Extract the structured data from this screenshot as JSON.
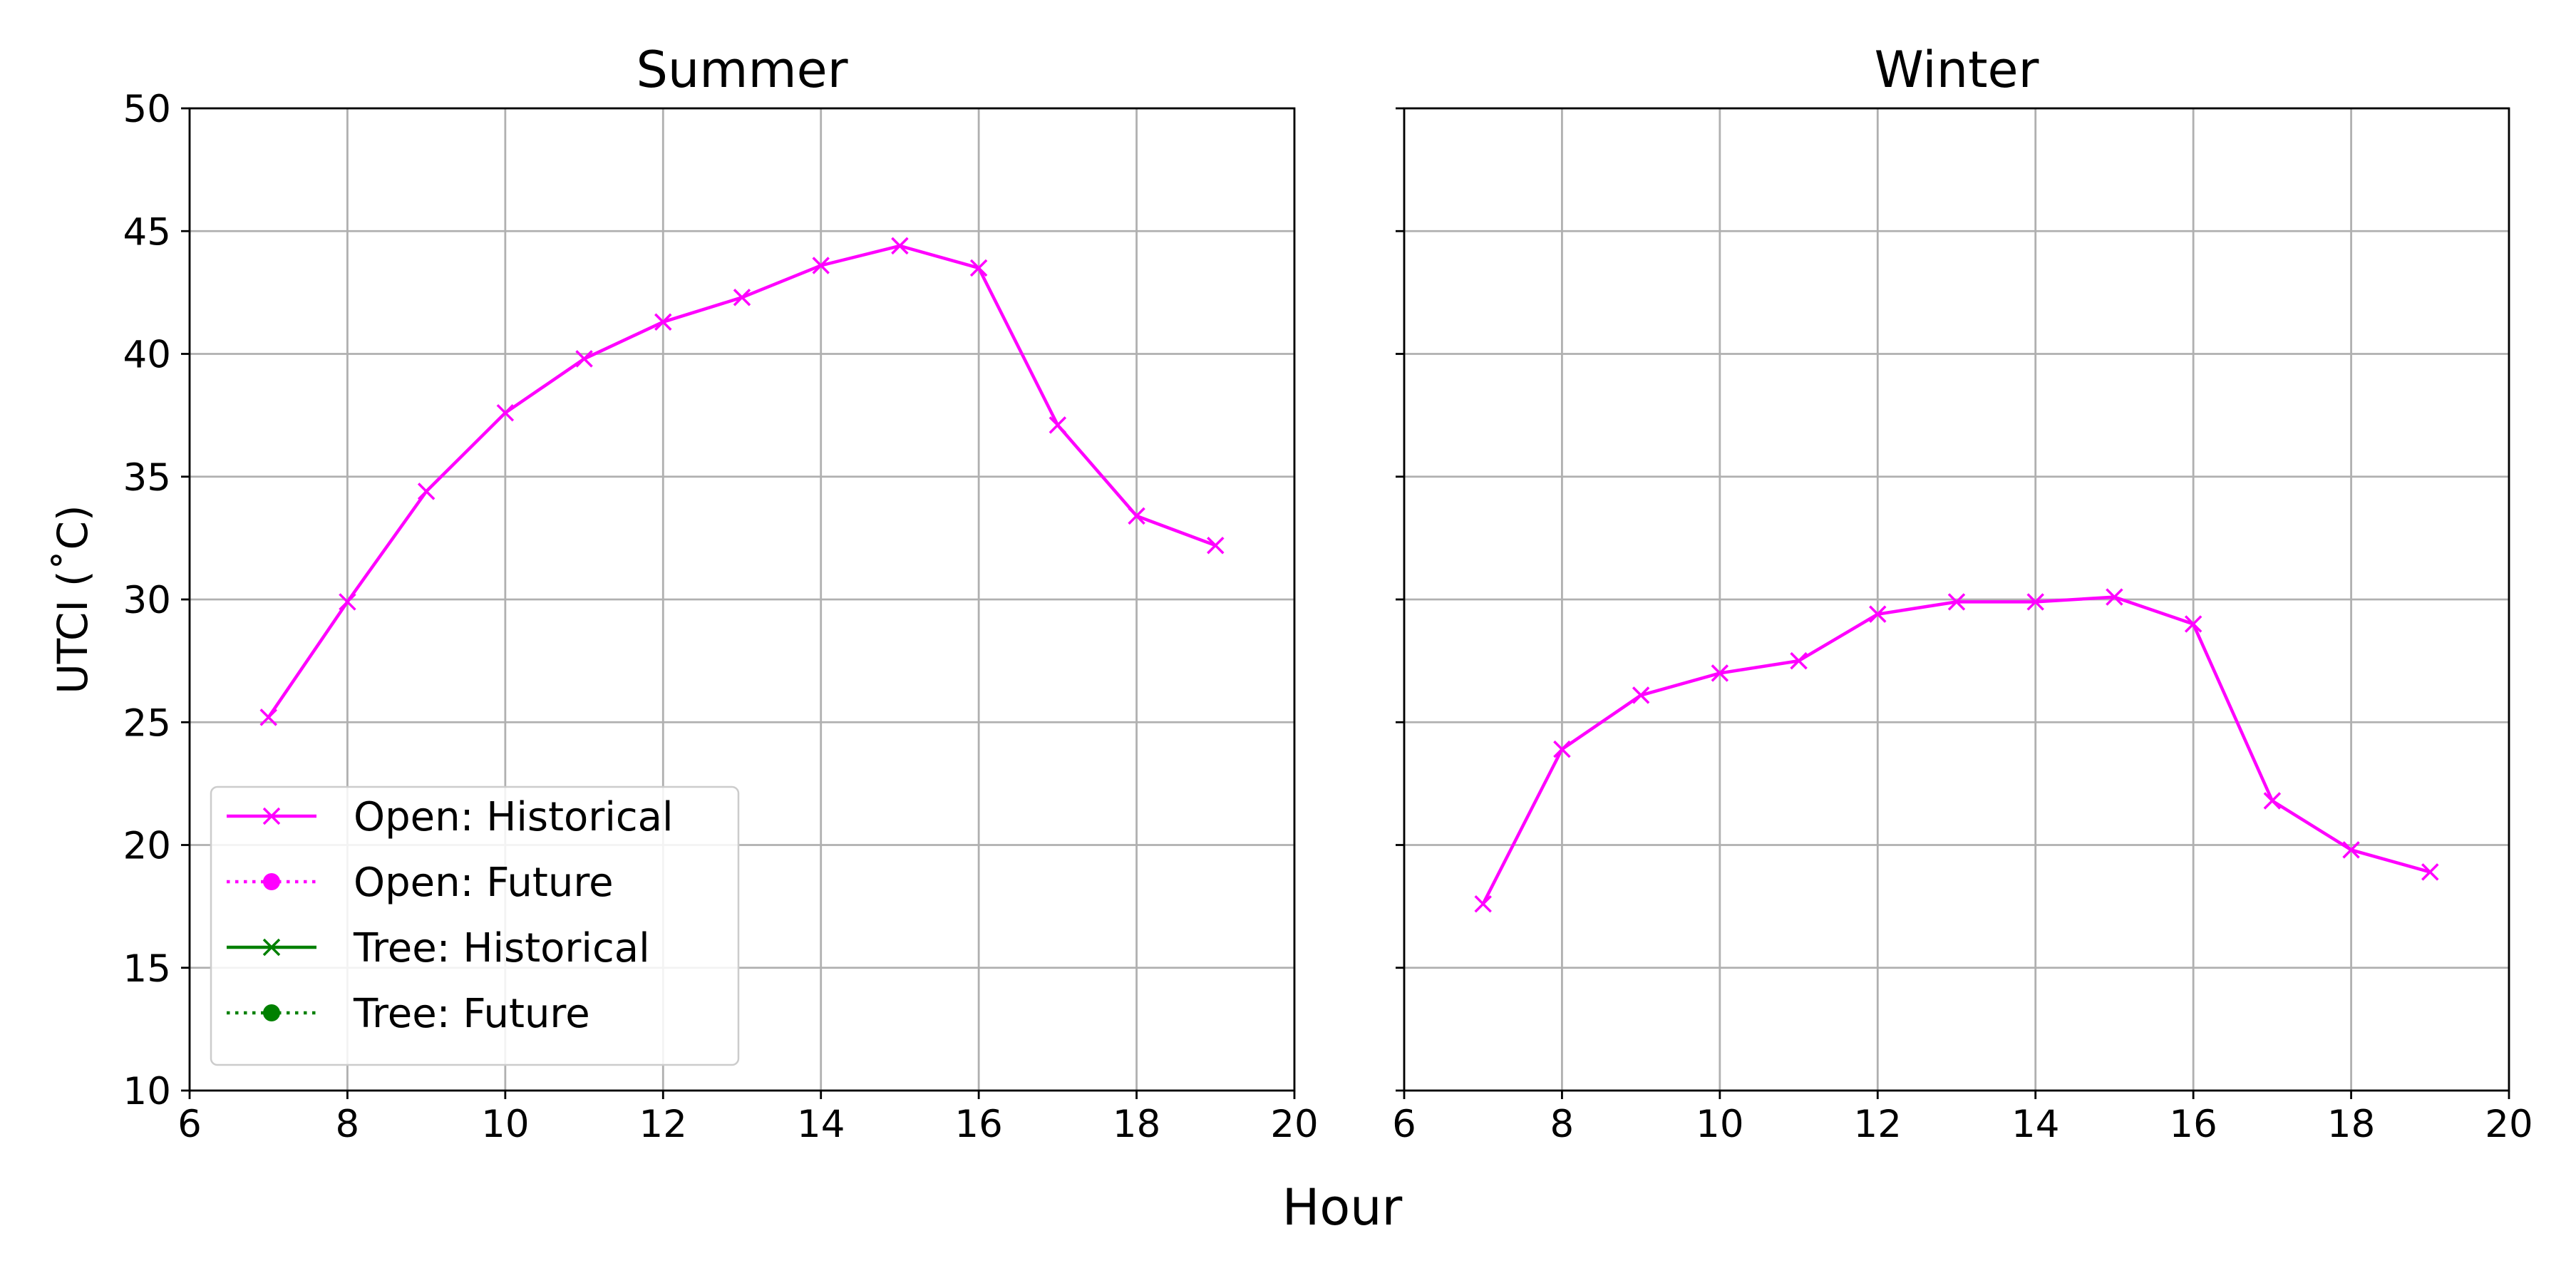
{
  "figure": {
    "supxlabel": "Hour"
  },
  "chart_data": [
    {
      "type": "line",
      "title": "Summer",
      "xlabel": "",
      "ylabel": "UTCI ($^\\circ$C)",
      "ylabel_display": "UTCI (˚C)",
      "xlim": [
        6,
        20
      ],
      "ylim": [
        10,
        50
      ],
      "xticks": [
        6,
        8,
        10,
        12,
        14,
        16,
        18,
        20
      ],
      "yticks": [
        10,
        15,
        20,
        25,
        30,
        35,
        40,
        45,
        50
      ],
      "grid": true,
      "legend_placement": "lower-left",
      "series": [
        {
          "name": "Open: Historical",
          "color": "#ff00ff",
          "linestyle": "solid",
          "marker": "x",
          "x": [
            7,
            8,
            9,
            10,
            11,
            12,
            13,
            14,
            15,
            16,
            17,
            18,
            19
          ],
          "y": [
            25.2,
            29.9,
            34.4,
            37.6,
            39.8,
            41.3,
            42.3,
            43.6,
            44.4,
            43.5,
            37.1,
            33.4,
            32.2
          ]
        }
      ]
    },
    {
      "type": "line",
      "title": "Winter",
      "xlabel": "",
      "ylabel": "",
      "xlim": [
        6,
        20
      ],
      "ylim": [
        10,
        50
      ],
      "xticks": [
        6,
        8,
        10,
        12,
        14,
        16,
        18,
        20
      ],
      "yticks": [
        10,
        15,
        20,
        25,
        30,
        35,
        40,
        45,
        50
      ],
      "show_ytick_labels": false,
      "grid": true,
      "series": [
        {
          "name": "Open: Historical",
          "color": "#ff00ff",
          "linestyle": "solid",
          "marker": "x",
          "x": [
            7,
            8,
            9,
            10,
            11,
            12,
            13,
            14,
            15,
            16,
            17,
            18,
            19
          ],
          "y": [
            17.6,
            23.9,
            26.1,
            27.0,
            27.5,
            29.4,
            29.9,
            29.9,
            30.1,
            29.0,
            21.8,
            19.8,
            18.9
          ]
        }
      ]
    }
  ],
  "legend": {
    "entries": [
      {
        "label": "Open: Historical",
        "color": "#ff00ff",
        "linestyle": "solid",
        "marker": "x"
      },
      {
        "label": "Open: Future",
        "color": "#ff00ff",
        "linestyle": "dotted",
        "marker": "circle"
      },
      {
        "label": "Tree: Historical",
        "color": "#008000",
        "linestyle": "solid",
        "marker": "x"
      },
      {
        "label": "Tree: Future",
        "color": "#008000",
        "linestyle": "dotted",
        "marker": "circle"
      }
    ]
  }
}
